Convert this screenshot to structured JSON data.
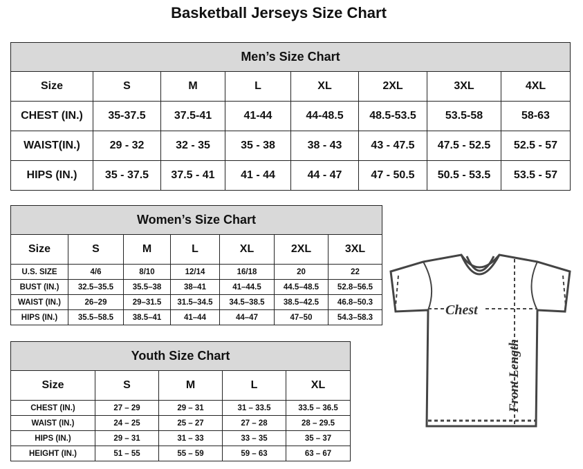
{
  "title": "Basketball Jerseys Size Chart",
  "men": {
    "heading": "Men’s Size Chart",
    "rows": [
      [
        "Size",
        "S",
        "M",
        "L",
        "XL",
        "2XL",
        "3XL",
        "4XL"
      ],
      [
        "CHEST (IN.)",
        "35-37.5",
        "37.5-41",
        "41-44",
        "44-48.5",
        "48.5-53.5",
        "53.5-58",
        "58-63"
      ],
      [
        "WAIST(IN.)",
        "29 - 32",
        "32 - 35",
        "35 - 38",
        "38 - 43",
        "43 - 47.5",
        "47.5 - 52.5",
        "52.5 - 57"
      ],
      [
        "HIPS (IN.)",
        "35 - 37.5",
        "37.5 - 41",
        "41 - 44",
        "44 - 47",
        "47 - 50.5",
        "50.5 - 53.5",
        "53.5 - 57"
      ]
    ]
  },
  "women": {
    "heading": "Women’s Size Chart",
    "rows": [
      [
        "Size",
        "S",
        "M",
        "L",
        "XL",
        "2XL",
        "3XL"
      ],
      [
        "U.S.  SIZE",
        "4/6",
        "8/10",
        "12/14",
        "16/18",
        "20",
        "22"
      ],
      [
        "BUST  (IN.)",
        "32.5–35.5",
        "35.5–38",
        "38–41",
        "41–44.5",
        "44.5–48.5",
        "52.8–56.5"
      ],
      [
        "WAIST  (IN.)",
        "26–29",
        "29–31.5",
        "31.5–34.5",
        "34.5–38.5",
        "38.5–42.5",
        "46.8–50.3"
      ],
      [
        "HIPS  (IN.)",
        "35.5–58.5",
        "38.5–41",
        "41–44",
        "44–47",
        "47–50",
        "54.3–58.3"
      ]
    ]
  },
  "youth": {
    "heading": "Youth Size Chart",
    "rows": [
      [
        "Size",
        "S",
        "M",
        "L",
        "XL"
      ],
      [
        "CHEST  (IN.)",
        "27  –  29",
        "29  –  31",
        "31  –  33.5",
        "33.5  –  36.5"
      ],
      [
        "WAIST  (IN.)",
        "24  –  25",
        "25  –  27",
        "27  –  28",
        "28  –  29.5"
      ],
      [
        "HIPS  (IN.)",
        "29  –  31",
        "31  –  33",
        "33  –  35",
        "35  –  37"
      ],
      [
        "HEIGHT  (IN.)",
        "51  –  55",
        "55  –  59",
        "59  –  63",
        "63  –  67"
      ]
    ]
  },
  "diagram": {
    "chest_label": "Chest",
    "length_label": "Front Length"
  }
}
